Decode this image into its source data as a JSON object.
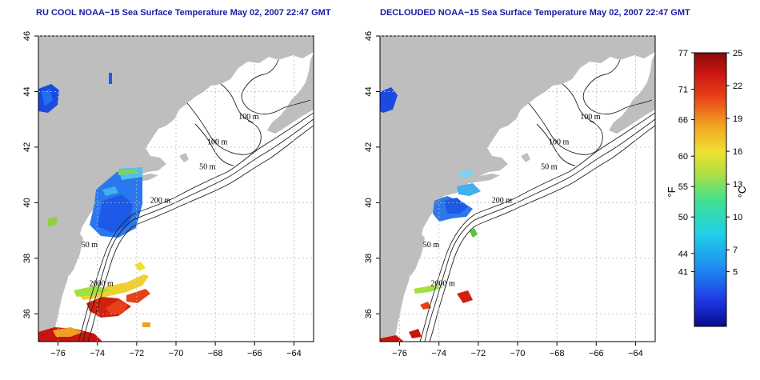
{
  "panels": [
    {
      "id": "left",
      "title": "RU COOL NOAA−15 Sea Surface Temperature May 02, 2007 22:47 GMT",
      "lon_range": [
        -77,
        -63
      ],
      "lat_range": [
        35,
        46
      ]
    },
    {
      "id": "right",
      "title": "DECLOUDED NOAA−15 Sea Surface Temperature May 02, 2007 22:47 GMT",
      "lon_range": [
        -77,
        -63
      ],
      "lat_range": [
        35,
        46
      ]
    }
  ],
  "axes": {
    "x_ticks": [
      -76,
      -74,
      -72,
      -70,
      -68,
      -66,
      -64
    ],
    "x_tick_labels": [
      "−76",
      "−74",
      "−72",
      "−70",
      "−68",
      "−66",
      "−64"
    ],
    "y_ticks": [
      36,
      38,
      40,
      42,
      44,
      46
    ],
    "y_tick_labels": [
      "36",
      "38",
      "40",
      "42",
      "44",
      "46"
    ],
    "grid": true
  },
  "contour_labels": [
    {
      "text": "100 m",
      "lon": -66.3,
      "lat": 43.0
    },
    {
      "text": "100 m",
      "lon": -67.9,
      "lat": 42.1
    },
    {
      "text": "50 m",
      "lon": -68.4,
      "lat": 41.2
    },
    {
      "text": "200 m",
      "lon": -70.8,
      "lat": 40.0
    },
    {
      "text": "50 m",
      "lon": -74.4,
      "lat": 38.4
    },
    {
      "text": "2000 m",
      "lon": -73.8,
      "lat": 37.0
    }
  ],
  "colorbar": {
    "fahrenheit_labels": [
      "77",
      "71",
      "66",
      "60",
      "55",
      "50",
      "44",
      "41"
    ],
    "fahrenheit_values": [
      77,
      71,
      66,
      60,
      55,
      50,
      44,
      41
    ],
    "celsius_labels": [
      "25",
      "22",
      "19",
      "16",
      "13",
      "10",
      "7",
      "5"
    ],
    "celsius_values": [
      25,
      22,
      19,
      16,
      13,
      10,
      7,
      5
    ],
    "range_c": [
      0,
      25
    ],
    "unit_f": "°F",
    "unit_c": "°C",
    "colors": [
      "#0a0a90",
      "#1e3ce6",
      "#1e90f0",
      "#20d0e8",
      "#40e090",
      "#b0e040",
      "#f0e030",
      "#f0a020",
      "#e84018",
      "#c81410",
      "#8a0a0a"
    ]
  }
}
